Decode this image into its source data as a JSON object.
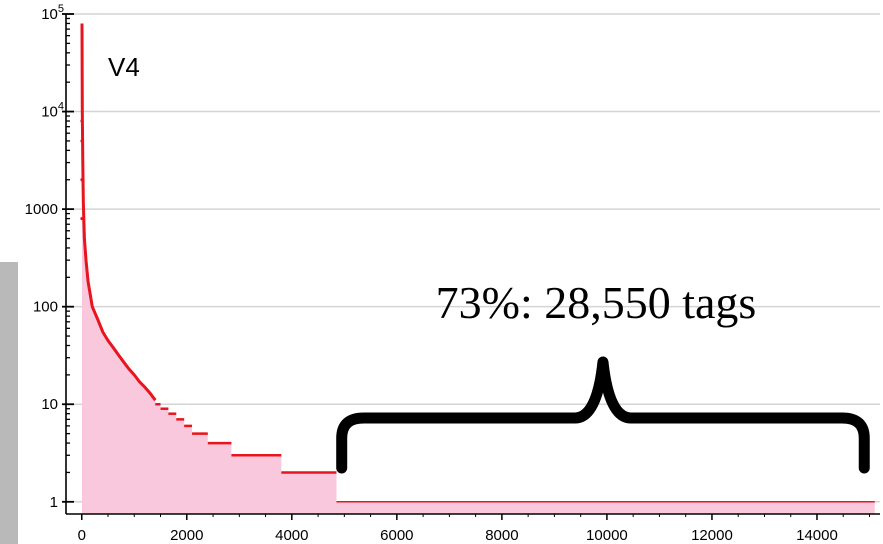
{
  "chart_data": {
    "type": "area",
    "panel_label": "V4",
    "x_ticks": [
      0,
      2000,
      4000,
      6000,
      8000,
      10000,
      12000,
      14000
    ],
    "y_ticks": [
      {
        "value": 1,
        "label": "1"
      },
      {
        "value": 10,
        "label": "10"
      },
      {
        "value": 100,
        "label": "100"
      },
      {
        "value": 1000,
        "label": "1000"
      },
      {
        "value": 10000,
        "label": "10",
        "exp": "4"
      },
      {
        "value": 100000,
        "label": "10",
        "exp": "5"
      }
    ],
    "y_scale": "log",
    "xlim": [
      -300,
      15200
    ],
    "ylim": [
      0.75,
      100000
    ],
    "grid": true,
    "series_color": "#e8141e",
    "fill_color": "#f9c8dc",
    "points": [
      [
        5,
        80000
      ],
      [
        10,
        10000
      ],
      [
        20,
        3000
      ],
      [
        30,
        1200
      ],
      [
        50,
        500
      ],
      [
        80,
        300
      ],
      [
        120,
        180
      ],
      [
        200,
        100
      ],
      [
        300,
        75
      ],
      [
        400,
        55
      ],
      [
        500,
        45
      ],
      [
        600,
        38
      ],
      [
        700,
        32
      ],
      [
        800,
        27
      ],
      [
        900,
        23
      ],
      [
        1000,
        20
      ],
      [
        1100,
        17
      ],
      [
        1200,
        15
      ],
      [
        1300,
        13
      ],
      [
        1400,
        11
      ]
    ],
    "steps": [
      {
        "from": 1400,
        "to": 1500,
        "value": 10
      },
      {
        "from": 1500,
        "to": 1650,
        "value": 9
      },
      {
        "from": 1650,
        "to": 1800,
        "value": 8
      },
      {
        "from": 1800,
        "to": 1950,
        "value": 7
      },
      {
        "from": 1950,
        "to": 2100,
        "value": 6
      },
      {
        "from": 2100,
        "to": 2400,
        "value": 5
      },
      {
        "from": 2400,
        "to": 2850,
        "value": 4
      },
      {
        "from": 2850,
        "to": 3800,
        "value": 3
      },
      {
        "from": 3800,
        "to": 4850,
        "value": 2
      },
      {
        "from": 4850,
        "to": 15100,
        "value": 1
      }
    ],
    "annotation": {
      "text": "73%: 28,550 tags",
      "brace_from": 4950,
      "brace_to": 14900
    }
  }
}
